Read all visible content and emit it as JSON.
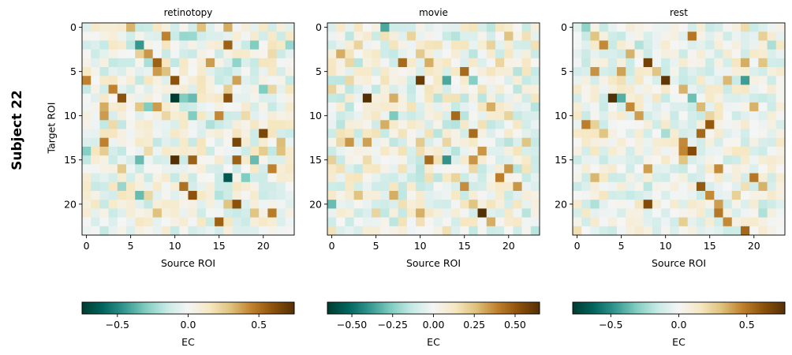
{
  "figure": {
    "suptitle": "Subject 22",
    "ylabel": "Target ROI",
    "xlabel": "Source ROI",
    "colorbar_label": "EC"
  },
  "chart_data": [
    {
      "type": "heatmap",
      "title": "retinotopy",
      "xlabel": "Source ROI",
      "ylabel": "Target ROI",
      "n": 24,
      "xticks": [
        0,
        5,
        10,
        15,
        20
      ],
      "yticks": [
        0,
        5,
        10,
        15,
        20
      ],
      "vmin": -0.75,
      "vmax": 0.75,
      "colorbar": {
        "label": "EC",
        "ticks": [
          -0.5,
          0.0,
          0.5
        ],
        "tick_labels": [
          "−0.5",
          "0.0",
          "0.5"
        ]
      },
      "seed": 22,
      "strong": [
        [
          0,
          16,
          0.35
        ],
        [
          0,
          13,
          0.3
        ],
        [
          1,
          9,
          0.45
        ],
        [
          1,
          11,
          -0.25
        ],
        [
          2,
          6,
          -0.45
        ],
        [
          2,
          16,
          0.55
        ],
        [
          2,
          19,
          -0.3
        ],
        [
          2,
          23,
          -0.25
        ],
        [
          3,
          7,
          0.4
        ],
        [
          3,
          21,
          0.2
        ],
        [
          4,
          8,
          0.55
        ],
        [
          5,
          9,
          0.3
        ],
        [
          6,
          0,
          0.45
        ],
        [
          6,
          10,
          0.6
        ],
        [
          7,
          3,
          0.45
        ],
        [
          7,
          16,
          0.25
        ],
        [
          7,
          20,
          -0.3
        ],
        [
          8,
          4,
          0.6
        ],
        [
          8,
          10,
          -0.75
        ],
        [
          8,
          11,
          -0.3
        ],
        [
          8,
          12,
          -0.35
        ],
        [
          8,
          16,
          0.6
        ],
        [
          9,
          2,
          0.35
        ],
        [
          9,
          7,
          -0.3
        ],
        [
          10,
          12,
          -0.3
        ],
        [
          10,
          18,
          0.2
        ],
        [
          11,
          3,
          0.2
        ],
        [
          11,
          14,
          -0.2
        ],
        [
          12,
          20,
          0.65
        ],
        [
          13,
          2,
          0.45
        ],
        [
          13,
          17,
          0.65
        ],
        [
          14,
          7,
          0.2
        ],
        [
          14,
          22,
          0.3
        ],
        [
          15,
          6,
          -0.35
        ],
        [
          15,
          10,
          0.75
        ],
        [
          15,
          12,
          0.55
        ],
        [
          15,
          17,
          0.55
        ],
        [
          15,
          19,
          -0.35
        ],
        [
          16,
          21,
          0.45
        ],
        [
          17,
          16,
          -0.65
        ],
        [
          17,
          18,
          -0.3
        ],
        [
          18,
          11,
          0.5
        ],
        [
          18,
          4,
          -0.25
        ],
        [
          19,
          6,
          -0.35
        ],
        [
          19,
          12,
          0.6
        ],
        [
          20,
          17,
          0.6
        ],
        [
          21,
          8,
          0.3
        ],
        [
          22,
          15,
          0.55
        ]
      ]
    },
    {
      "type": "heatmap",
      "title": "movie",
      "xlabel": "Source ROI",
      "ylabel": "",
      "n": 24,
      "xticks": [
        0,
        5,
        10,
        15,
        20
      ],
      "yticks": [
        0,
        5,
        10,
        15,
        20
      ],
      "vmin": -0.65,
      "vmax": 0.65,
      "colorbar": {
        "label": "EC",
        "ticks": [
          -0.5,
          -0.25,
          0.0,
          0.25,
          0.5
        ],
        "tick_labels": [
          "−0.50",
          "−0.25",
          "0.00",
          "0.25",
          "0.50"
        ]
      },
      "seed": 57,
      "strong": [
        [
          0,
          6,
          -0.35
        ],
        [
          1,
          9,
          0.2
        ],
        [
          2,
          3,
          0.2
        ],
        [
          3,
          1,
          0.3
        ],
        [
          4,
          8,
          0.45
        ],
        [
          5,
          15,
          0.45
        ],
        [
          6,
          10,
          0.6
        ],
        [
          6,
          13,
          -0.35
        ],
        [
          6,
          16,
          -0.25
        ],
        [
          7,
          0,
          0.2
        ],
        [
          8,
          4,
          0.65
        ],
        [
          8,
          7,
          0.3
        ],
        [
          9,
          18,
          0.3
        ],
        [
          10,
          20,
          0.2
        ],
        [
          11,
          6,
          0.3
        ],
        [
          12,
          16,
          0.45
        ],
        [
          13,
          2,
          0.35
        ],
        [
          13,
          22,
          0.25
        ],
        [
          14,
          17,
          0.35
        ],
        [
          15,
          11,
          0.45
        ],
        [
          15,
          13,
          -0.4
        ],
        [
          15,
          16,
          0.35
        ],
        [
          16,
          20,
          0.35
        ],
        [
          17,
          19,
          0.4
        ],
        [
          17,
          14,
          0.2
        ],
        [
          18,
          21,
          0.35
        ],
        [
          19,
          7,
          0.3
        ],
        [
          20,
          0,
          -0.3
        ],
        [
          20,
          16,
          0.25
        ],
        [
          21,
          17,
          0.65
        ],
        [
          22,
          18,
          0.3
        ]
      ]
    },
    {
      "type": "heatmap",
      "title": "rest",
      "xlabel": "Source ROI",
      "ylabel": "",
      "n": 24,
      "xticks": [
        0,
        5,
        10,
        15,
        20
      ],
      "yticks": [
        0,
        5,
        10,
        15,
        20
      ],
      "vmin": -0.78,
      "vmax": 0.78,
      "colorbar": {
        "label": "EC",
        "ticks": [
          -0.5,
          0.0,
          0.5
        ],
        "tick_labels": [
          "−0.5",
          "0.0",
          "0.5"
        ]
      },
      "seed": 91,
      "strong": [
        [
          1,
          13,
          0.5
        ],
        [
          1,
          2,
          0.3
        ],
        [
          2,
          3,
          0.45
        ],
        [
          3,
          6,
          0.35
        ],
        [
          4,
          8,
          0.7
        ],
        [
          4,
          21,
          0.3
        ],
        [
          5,
          9,
          0.3
        ],
        [
          6,
          10,
          0.75
        ],
        [
          6,
          19,
          -0.45
        ],
        [
          7,
          12,
          0.35
        ],
        [
          8,
          4,
          0.78
        ],
        [
          8,
          5,
          -0.4
        ],
        [
          8,
          13,
          -0.35
        ],
        [
          9,
          6,
          0.45
        ],
        [
          9,
          20,
          0.35
        ],
        [
          10,
          7,
          0.4
        ],
        [
          11,
          2,
          0.25
        ],
        [
          11,
          15,
          0.6
        ],
        [
          12,
          14,
          0.55
        ],
        [
          12,
          3,
          0.3
        ],
        [
          13,
          12,
          0.45
        ],
        [
          14,
          13,
          0.65
        ],
        [
          15,
          12,
          0.3
        ],
        [
          16,
          16,
          0.45
        ],
        [
          16,
          8,
          0.4
        ],
        [
          17,
          20,
          0.5
        ],
        [
          18,
          14,
          0.6
        ],
        [
          18,
          21,
          0.35
        ],
        [
          19,
          15,
          0.45
        ],
        [
          20,
          8,
          0.65
        ],
        [
          20,
          16,
          0.4
        ],
        [
          21,
          16,
          0.5
        ],
        [
          22,
          17,
          0.45
        ],
        [
          23,
          19,
          0.55
        ]
      ]
    }
  ]
}
